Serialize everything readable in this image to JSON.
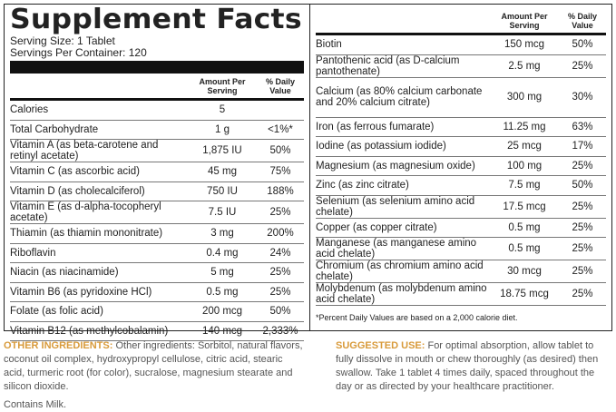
{
  "title": "Supplement Facts",
  "serving_size": "Serving Size: 1 Tablet",
  "servings_per_container": "Servings Per Container: 120",
  "headers": {
    "amount": "Amount Per Serving",
    "dv": "% Daily Value"
  },
  "left_rows": [
    {
      "name": "Calories",
      "amount": "5",
      "dv": ""
    },
    {
      "name": "Total Carbohydrate",
      "amount": "1 g",
      "dv": "<1%*"
    },
    {
      "name": "Vitamin A (as beta-carotene and retinyl acetate)",
      "amount": "1,875 IU",
      "dv": "50%"
    },
    {
      "name": "Vitamin C (as ascorbic acid)",
      "amount": "45 mg",
      "dv": "75%"
    },
    {
      "name": "Vitamin D (as cholecalciferol)",
      "amount": "750 IU",
      "dv": "188%"
    },
    {
      "name": "Vitamin E (as d-alpha-tocopheryl acetate)",
      "amount": "7.5 IU",
      "dv": "25%"
    },
    {
      "name": "Thiamin (as thiamin mononitrate)",
      "amount": "3 mg",
      "dv": "200%"
    },
    {
      "name": "Riboflavin",
      "amount": "0.4 mg",
      "dv": "24%"
    },
    {
      "name": "Niacin (as niacinamide)",
      "amount": "5 mg",
      "dv": "25%"
    },
    {
      "name": "Vitamin B6 (as pyridoxine HCl)",
      "amount": "0.5 mg",
      "dv": "25%"
    },
    {
      "name": "Folate (as folic acid)",
      "amount": "200 mcg",
      "dv": "50%"
    },
    {
      "name": "Vitamin B12 (as methylcobalamin)",
      "amount": "140 mcg",
      "dv": "2,333%"
    }
  ],
  "right_rows": [
    {
      "name": "Biotin",
      "amount": "150 mcg",
      "dv": "50%"
    },
    {
      "name": "Pantothenic acid (as D-calcium pantothenate)",
      "amount": "2.5 mg",
      "dv": "25%"
    },
    {
      "name": "Calcium (as 80% calcium carbonate and 20% calcium citrate)",
      "amount": "300 mg",
      "dv": "30%"
    },
    {
      "name": "Iron (as ferrous fumarate)",
      "amount": "11.25 mg",
      "dv": "63%"
    },
    {
      "name": "Iodine (as potassium iodide)",
      "amount": "25 mcg",
      "dv": "17%"
    },
    {
      "name": "Magnesium (as magnesium oxide)",
      "amount": "100 mg",
      "dv": "25%"
    },
    {
      "name": "Zinc (as zinc citrate)",
      "amount": "7.5 mg",
      "dv": "50%"
    },
    {
      "name": "Selenium (as selenium amino acid chelate)",
      "amount": "17.5 mcg",
      "dv": "25%"
    },
    {
      "name": "Copper (as copper citrate)",
      "amount": "0.5 mg",
      "dv": "25%"
    },
    {
      "name": "Manganese (as manganese amino acid chelate)",
      "amount": "0.5 mg",
      "dv": "25%"
    },
    {
      "name": "Chromium (as chromium amino acid chelate)",
      "amount": "30 mcg",
      "dv": "25%"
    },
    {
      "name": "Molybdenum (as molybdenum amino acid chelate)",
      "amount": "18.75 mcg",
      "dv": "25%"
    }
  ],
  "footnote": "*Percent Daily Values are based on a 2,000 calorie diet.",
  "other_ingredients": {
    "label": "OTHER INGREDIENTS:",
    "text": "Other ingredients: Sorbitol, natural flavors, coconut oil complex, hydroxypropyl cellulose, citric acid, stearic acid, turmeric root (for color), sucralose, magnesium stearate and silicon dioxide.",
    "allergen": "Contains Milk."
  },
  "suggested_use": {
    "label": "SUGGESTED USE:",
    "text": "For optimal absorption, allow tablet to fully dissolve in mouth or chew thoroughly (as desired) then swallow. Take 1 tablet 4 times daily, spaced throughout the day or as directed by your healthcare practitioner."
  },
  "colors": {
    "accent": "#d89a3a"
  }
}
